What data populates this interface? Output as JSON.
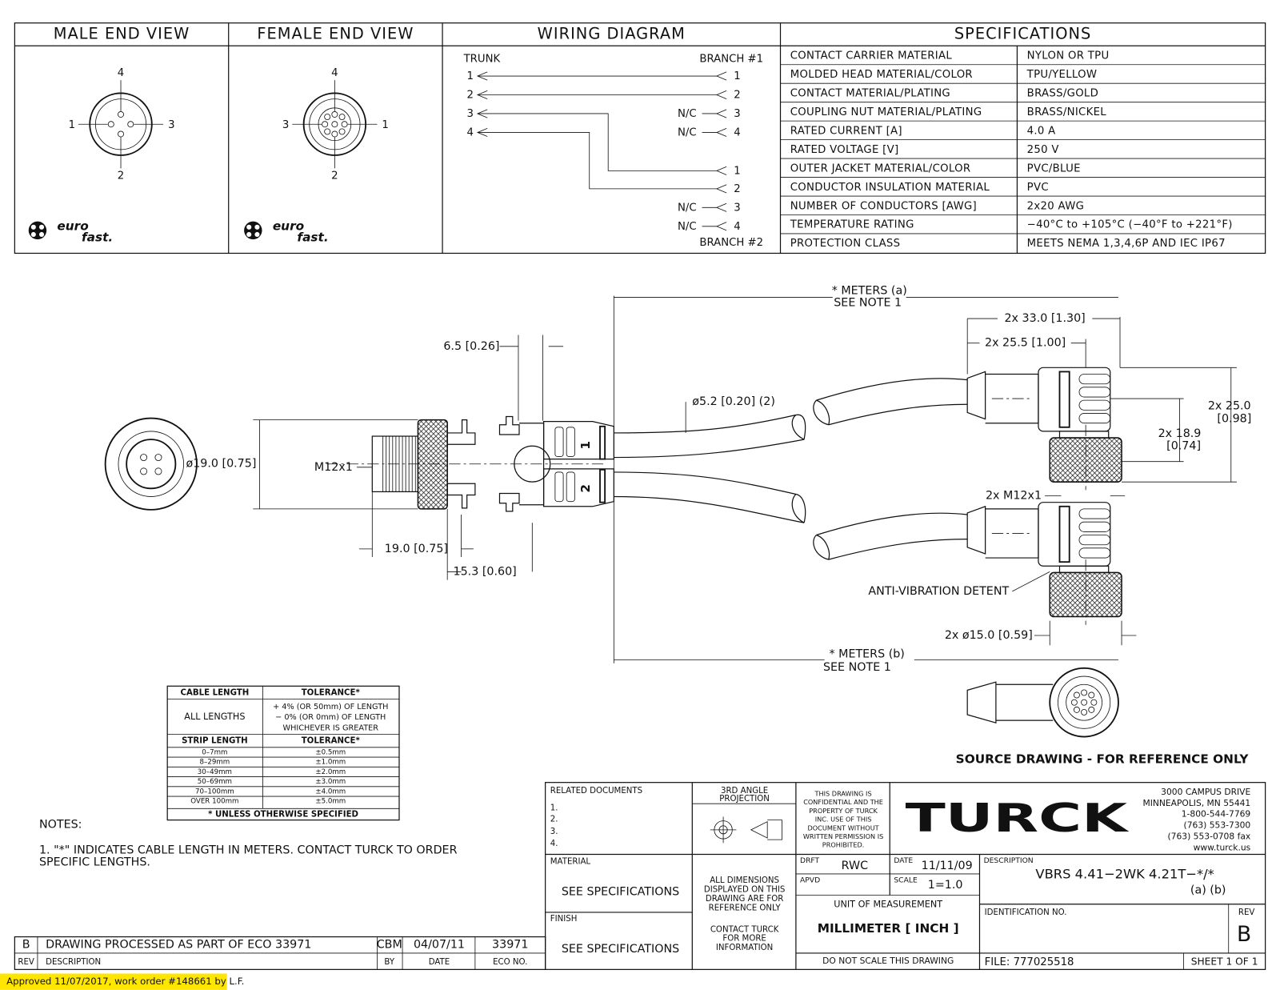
{
  "header": {
    "male_end_view": "MALE END VIEW",
    "female_end_view": "FEMALE END VIEW",
    "wiring_diagram": "WIRING DIAGRAM",
    "specifications": "SPECIFICATIONS"
  },
  "male_end": {
    "pins": [
      "4",
      "1",
      "3",
      "2"
    ],
    "logo": [
      "euro",
      "fast."
    ]
  },
  "female_end": {
    "pins": [
      "4",
      "3",
      "1",
      "2"
    ],
    "logo": [
      "euro",
      "fast."
    ]
  },
  "wiring": {
    "trunk": "TRUNK",
    "branch1": "BRANCH #1",
    "branch2": "BRANCH #2",
    "trunk_pins": [
      "1",
      "2",
      "3",
      "4"
    ],
    "branch1_pins": [
      "1",
      "2",
      "3",
      "4"
    ],
    "branch2_pins": [
      "1",
      "2",
      "3",
      "4"
    ],
    "nc": "N/C"
  },
  "specifications": [
    [
      "CONTACT CARRIER MATERIAL",
      "NYLON OR TPU"
    ],
    [
      "MOLDED HEAD MATERIAL/COLOR",
      "TPU/YELLOW"
    ],
    [
      "CONTACT MATERIAL/PLATING",
      "BRASS/GOLD"
    ],
    [
      "COUPLING NUT MATERIAL/PLATING",
      "BRASS/NICKEL"
    ],
    [
      "RATED CURRENT [A]",
      "4.0 A"
    ],
    [
      "RATED VOLTAGE [V]",
      "250 V"
    ],
    [
      "OUTER JACKET MATERIAL/COLOR",
      "PVC/BLUE"
    ],
    [
      "CONDUCTOR INSULATION MATERIAL",
      "PVC"
    ],
    [
      "NUMBER OF CONDUCTORS [AWG]",
      "2x20 AWG"
    ],
    [
      "TEMPERATURE RATING",
      "−40°C to +105°C (−40°F to +221°F)"
    ],
    [
      "PROTECTION CLASS",
      "MEETS NEMA 1,3,4,6P AND IEC IP67"
    ]
  ],
  "drawing": {
    "dimensions": {
      "strip": "6.5 [0.26]",
      "diameter": "ø19.0 [0.75]",
      "thread": "M12x1",
      "length": "19.0 [0.75]",
      "nut": "15.3 [0.60]",
      "cable": "ø5.2 [0.20] (2)",
      "meters_a": "* METERS (a)",
      "see_note_a": "SEE NOTE 1",
      "angle_length": "2x 33.0 [1.30]",
      "angle_offset": "2x 25.5 [1.00]",
      "height": "2x 25.0",
      "height_in": "[0.98]",
      "center": "2x 18.9",
      "center_in": "[0.74]",
      "angle_thread": "2x M12x1",
      "detent": "ANTI-VIBRATION DETENT",
      "angle_diameter": "2x ø15.0 [0.59]",
      "meters_b": "* METERS (b)",
      "see_note_b": "SEE NOTE 1"
    },
    "branch_labels": [
      "1",
      "2"
    ],
    "source_note": "SOURCE DRAWING - FOR REFERENCE ONLY"
  },
  "tolerance_table": {
    "header": [
      "CABLE LENGTH",
      "TOLERANCE*"
    ],
    "all_lengths": "ALL LENGTHS",
    "all_tolerance": [
      "+ 4% (OR 50mm) OF LENGTH",
      "− 0% (OR 0mm) OF LENGTH",
      "WHICHEVER IS GREATER"
    ],
    "strip_header": [
      "STRIP LENGTH",
      "TOLERANCE*"
    ],
    "strip_rows": [
      [
        "0–7mm",
        "±0.5mm"
      ],
      [
        "8–29mm",
        "±1.0mm"
      ],
      [
        "30–49mm",
        "±2.0mm"
      ],
      [
        "50–69mm",
        "±3.0mm"
      ],
      [
        "70–100mm",
        "±4.0mm"
      ],
      [
        "OVER 100mm",
        "±5.0mm"
      ]
    ],
    "footnote": "* UNLESS OTHERWISE SPECIFIED"
  },
  "notes": {
    "title": "NOTES:",
    "lines": [
      "1. \"*\" INDICATES CABLE LENGTH IN METERS. CONTACT TURCK TO ORDER",
      "SPECIFIC LENGTHS."
    ]
  },
  "revision": {
    "row": [
      "B",
      "DRAWING PROCESSED AS PART OF ECO 33971",
      "CBM",
      "04/07/11",
      "33971"
    ],
    "headers": [
      "REV",
      "DESCRIPTION",
      "BY",
      "DATE",
      "ECO NO."
    ]
  },
  "title_block": {
    "related_documents": "RELATED DOCUMENTS",
    "related_items": [
      "1.",
      "2.",
      "3.",
      "4."
    ],
    "projection": [
      "3RD ANGLE",
      "PROJECTION"
    ],
    "confidential": [
      "THIS DRAWING IS",
      "CONFIDENTIAL AND THE",
      "PROPERTY OF TURCK",
      "INC. USE OF THIS",
      "DOCUMENT WITHOUT",
      "WRITTEN PERMISSION IS",
      "PROHIBITED."
    ],
    "company": "TURCK",
    "address": [
      "3000 CAMPUS DRIVE",
      "MINNEAPOLIS, MN 55441",
      "1-800-544-7769",
      "(763) 553-7300",
      "(763) 553-0708 fax",
      "www.turck.us"
    ],
    "material_label": "MATERIAL",
    "material": "SEE SPECIFICATIONS",
    "finish_label": "FINISH",
    "finish": "SEE SPECIFICATIONS",
    "dimensions_note": [
      "ALL DIMENSIONS",
      "DISPLAYED ON THIS",
      "DRAWING ARE FOR",
      "REFERENCE ONLY"
    ],
    "contact_note": [
      "CONTACT TURCK",
      "FOR MORE",
      "INFORMATION"
    ],
    "drft_label": "DRFT",
    "drft": "RWC",
    "date_label": "DATE",
    "date": "11/11/09",
    "apvd_label": "APVD",
    "scale_label": "SCALE",
    "scale": "1=1.0",
    "unit_label": "UNIT OF MEASUREMENT",
    "unit": "MILLIMETER [ INCH ]",
    "no_scale": "DO NOT SCALE THIS DRAWING",
    "description_label": "DESCRIPTION",
    "description": "VBRS 4.41−2WK 4.21T−*/*",
    "description_sub": "(a) (b)",
    "identification_label": "IDENTIFICATION NO.",
    "rev_label": "REV",
    "rev": "B",
    "file": "FILE: 777025518",
    "sheet": "SHEET 1 OF 1"
  },
  "approval": "Approved 11/07/2017, work order #148661 by L.F."
}
